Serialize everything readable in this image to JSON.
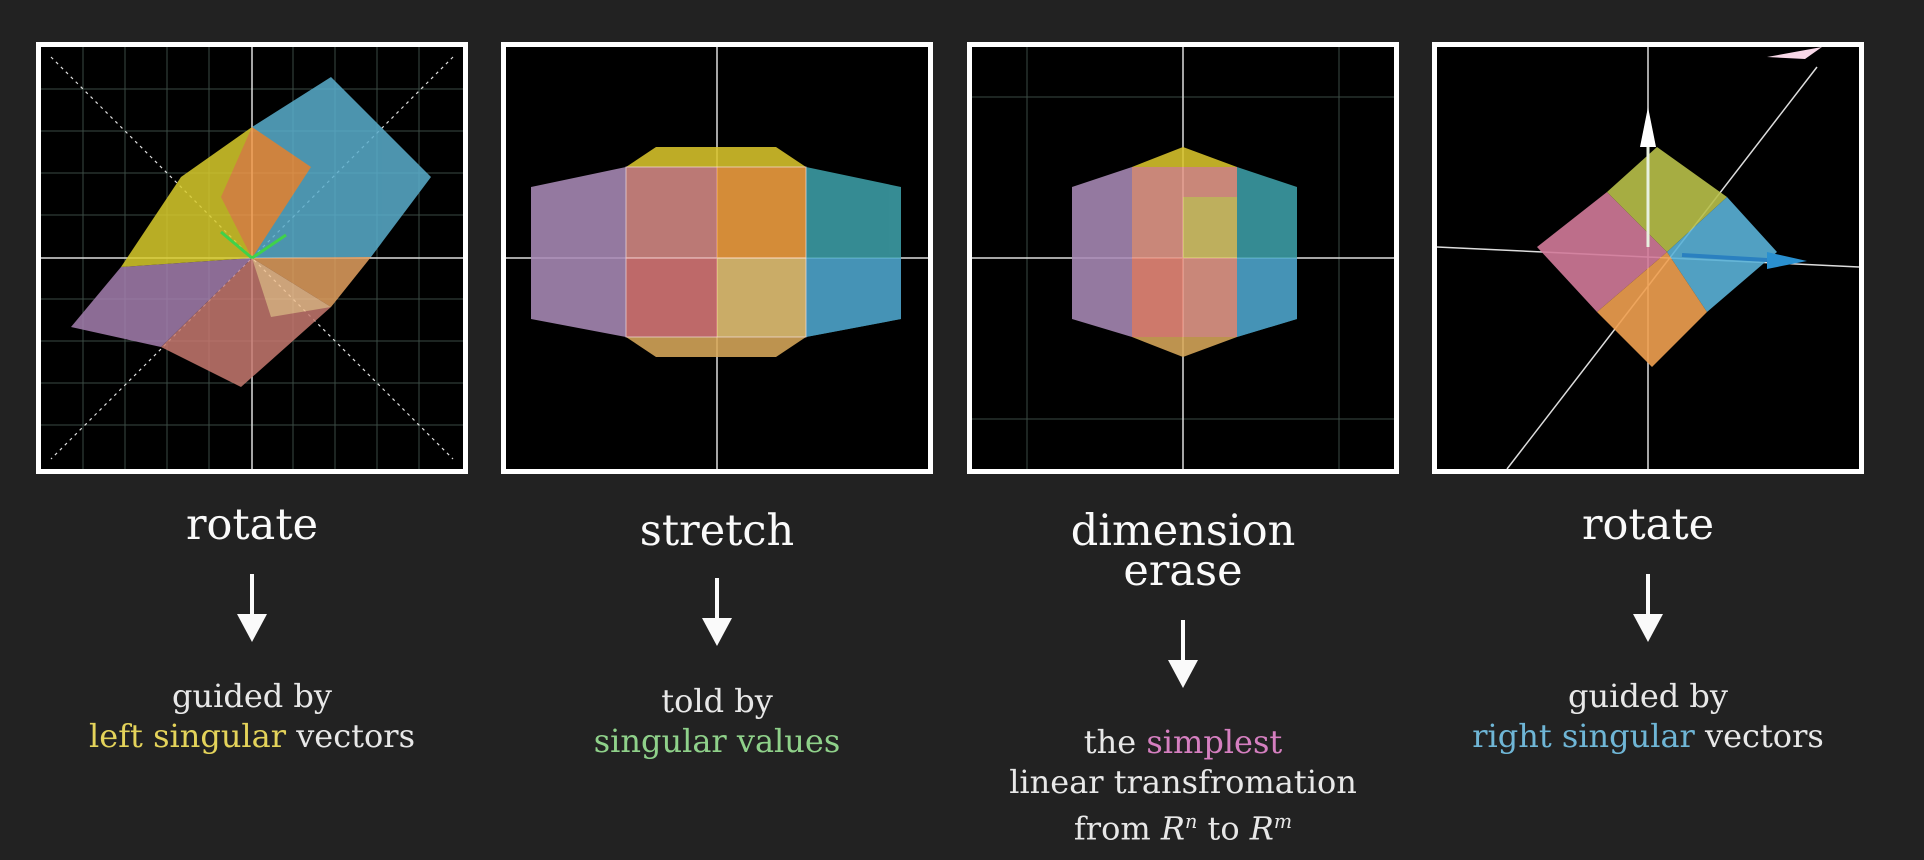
{
  "steps": [
    {
      "title_lines": [
        "rotate"
      ],
      "caption": {
        "line1": "guided by",
        "line2_colored_a": "left singular",
        "line2_plain": " vectors"
      }
    },
    {
      "title_lines": [
        "stretch"
      ],
      "caption": {
        "line1": "told by",
        "line2_colored_a": "singular values",
        "line2_plain": ""
      }
    },
    {
      "title_lines": [
        "dimension",
        "erase"
      ],
      "caption": {
        "line1_plain": "the ",
        "line1_colored": "simplest",
        "line2": "linear transfromation",
        "line3_from": "from ",
        "line3_math1": "R",
        "line3_sup1": "n",
        "line3_to": " to ",
        "line3_math2": "R",
        "line3_sup2": "m"
      }
    },
    {
      "title_lines": [
        "rotate"
      ],
      "caption": {
        "line1": "guided by",
        "line2_colored_a": "right singular",
        "line2_plain": " vectors"
      }
    }
  ],
  "colors": {
    "left_singular": "#e4d35a",
    "singular_values": "#8fd18a",
    "simplest": "#d57fc0",
    "right_singular": "#6fb6d6",
    "background": "#222222",
    "panel_border": "#ffffff"
  }
}
